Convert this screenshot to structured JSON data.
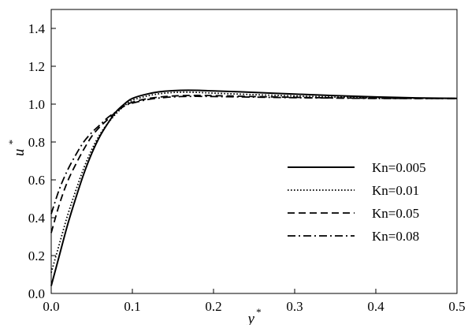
{
  "chart_data": {
    "type": "line",
    "title": "",
    "xlabel": "y",
    "ylabel": "u",
    "xlabel_superscript": "*",
    "ylabel_superscript": "*",
    "xlim": [
      0.0,
      0.5
    ],
    "ylim": [
      0.0,
      1.5
    ],
    "x_ticks": [
      "0.0",
      "0.1",
      "0.2",
      "0.3",
      "0.4",
      "0.5"
    ],
    "y_ticks": [
      "0.0",
      "0.2",
      "0.4",
      "0.6",
      "0.8",
      "1.0",
      "1.2",
      "1.4"
    ],
    "grid": false,
    "legend_position": "right",
    "series": [
      {
        "name": "Kn=0.005",
        "dash": "solid",
        "x": [
          0.0,
          0.01,
          0.02,
          0.03,
          0.04,
          0.05,
          0.06,
          0.07,
          0.08,
          0.09,
          0.1,
          0.12,
          0.14,
          0.16,
          0.18,
          0.2,
          0.25,
          0.3,
          0.35,
          0.4,
          0.45,
          0.5
        ],
        "y": [
          0.04,
          0.2,
          0.36,
          0.5,
          0.63,
          0.74,
          0.83,
          0.9,
          0.96,
          1.0,
          1.03,
          1.055,
          1.068,
          1.073,
          1.073,
          1.07,
          1.062,
          1.053,
          1.045,
          1.038,
          1.033,
          1.03
        ]
      },
      {
        "name": "Kn=0.01",
        "dash": "dotted",
        "x": [
          0.0,
          0.01,
          0.02,
          0.03,
          0.04,
          0.05,
          0.06,
          0.07,
          0.08,
          0.09,
          0.1,
          0.12,
          0.14,
          0.16,
          0.18,
          0.2,
          0.25,
          0.3,
          0.35,
          0.4,
          0.45,
          0.5
        ],
        "y": [
          0.11,
          0.26,
          0.41,
          0.54,
          0.66,
          0.76,
          0.84,
          0.9,
          0.95,
          0.99,
          1.02,
          1.045,
          1.058,
          1.063,
          1.062,
          1.058,
          1.05,
          1.043,
          1.037,
          1.033,
          1.031,
          1.03
        ]
      },
      {
        "name": "Kn=0.05",
        "dash": "dashed",
        "x": [
          0.0,
          0.01,
          0.02,
          0.03,
          0.04,
          0.05,
          0.06,
          0.07,
          0.08,
          0.09,
          0.1,
          0.12,
          0.14,
          0.16,
          0.18,
          0.2,
          0.25,
          0.3,
          0.35,
          0.4,
          0.45,
          0.5
        ],
        "y": [
          0.32,
          0.47,
          0.59,
          0.68,
          0.76,
          0.83,
          0.88,
          0.92,
          0.96,
          0.99,
          1.01,
          1.03,
          1.04,
          1.045,
          1.046,
          1.045,
          1.04,
          1.036,
          1.033,
          1.031,
          1.03,
          1.03
        ]
      },
      {
        "name": "Kn=0.08",
        "dash": "dashdot",
        "x": [
          0.0,
          0.01,
          0.02,
          0.03,
          0.04,
          0.05,
          0.06,
          0.07,
          0.08,
          0.09,
          0.1,
          0.12,
          0.14,
          0.16,
          0.18,
          0.2,
          0.25,
          0.3,
          0.35,
          0.4,
          0.45,
          0.5
        ],
        "y": [
          0.42,
          0.55,
          0.65,
          0.73,
          0.8,
          0.85,
          0.89,
          0.93,
          0.96,
          0.99,
          1.005,
          1.025,
          1.035,
          1.04,
          1.041,
          1.04,
          1.037,
          1.034,
          1.032,
          1.03,
          1.03,
          1.03
        ]
      }
    ]
  }
}
